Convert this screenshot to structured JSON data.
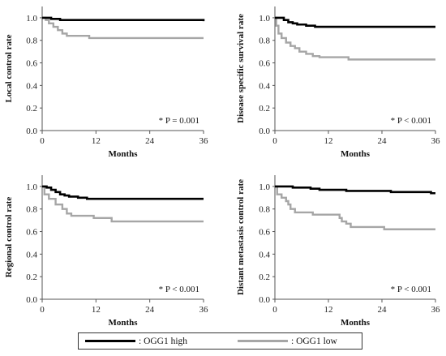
{
  "chart_data": [
    {
      "type": "line",
      "xlabel": "Months",
      "ylabel": "Local control rate",
      "xticks": [
        0,
        12,
        24,
        36
      ],
      "yticks": [
        0.0,
        0.2,
        0.4,
        0.6,
        0.8,
        1.0
      ],
      "xlim": [
        0,
        36
      ],
      "ylim": [
        0,
        1.1
      ],
      "annotation": "* P = 0.001",
      "series": [
        {
          "name": ": OGG1 high",
          "color": "#000000",
          "points": [
            [
              0,
              1.0
            ],
            [
              1.5,
              1.0
            ],
            [
              2,
              0.99
            ],
            [
              3,
              0.99
            ],
            [
              4,
              0.98
            ],
            [
              36,
              0.97
            ]
          ]
        },
        {
          "name": ": OGG1 low",
          "color": "#a6a6a6",
          "points": [
            [
              0,
              1.0
            ],
            [
              0.8,
              0.98
            ],
            [
              1.5,
              0.95
            ],
            [
              2.5,
              0.92
            ],
            [
              3.5,
              0.89
            ],
            [
              4.5,
              0.86
            ],
            [
              5.5,
              0.84
            ],
            [
              10,
              0.84
            ],
            [
              10.5,
              0.82
            ],
            [
              36,
              0.82
            ]
          ]
        }
      ]
    },
    {
      "type": "line",
      "xlabel": "Months",
      "ylabel": "Disease specific survival rate",
      "xticks": [
        0,
        12,
        24,
        36
      ],
      "yticks": [
        0.0,
        0.2,
        0.4,
        0.6,
        0.8,
        1.0
      ],
      "xlim": [
        0,
        36
      ],
      "ylim": [
        0,
        1.1
      ],
      "annotation": "* P < 0.001",
      "series": [
        {
          "name": ": OGG1 high",
          "color": "#000000",
          "points": [
            [
              0,
              1.0
            ],
            [
              1.5,
              1.0
            ],
            [
              2,
              0.98
            ],
            [
              3,
              0.96
            ],
            [
              4,
              0.95
            ],
            [
              5,
              0.94
            ],
            [
              7,
              0.93
            ],
            [
              9,
              0.92
            ],
            [
              36,
              0.92
            ]
          ]
        },
        {
          "name": ": OGG1 low",
          "color": "#a6a6a6",
          "points": [
            [
              0,
              1.0
            ],
            [
              0.3,
              0.93
            ],
            [
              0.8,
              0.86
            ],
            [
              1.5,
              0.82
            ],
            [
              2.5,
              0.78
            ],
            [
              3.5,
              0.75
            ],
            [
              4.5,
              0.73
            ],
            [
              5.5,
              0.7
            ],
            [
              7,
              0.68
            ],
            [
              8.5,
              0.66
            ],
            [
              10,
              0.65
            ],
            [
              16,
              0.65
            ],
            [
              16.5,
              0.63
            ],
            [
              36,
              0.63
            ]
          ]
        }
      ]
    },
    {
      "type": "line",
      "xlabel": "Months",
      "ylabel": "Regional control rate",
      "xticks": [
        0,
        12,
        24,
        36
      ],
      "yticks": [
        0.0,
        0.2,
        0.4,
        0.6,
        0.8,
        1.0
      ],
      "xlim": [
        0,
        36
      ],
      "ylim": [
        0,
        1.1
      ],
      "annotation": "* P < 0.001",
      "series": [
        {
          "name": ": OGG1 high",
          "color": "#000000",
          "points": [
            [
              0,
              1.0
            ],
            [
              1,
              0.99
            ],
            [
              2,
              0.97
            ],
            [
              3,
              0.95
            ],
            [
              4,
              0.93
            ],
            [
              5,
              0.92
            ],
            [
              6,
              0.91
            ],
            [
              8,
              0.9
            ],
            [
              10,
              0.89
            ],
            [
              36,
              0.89
            ]
          ]
        },
        {
          "name": ": OGG1 low",
          "color": "#a6a6a6",
          "points": [
            [
              0,
              1.0
            ],
            [
              0.5,
              0.93
            ],
            [
              1.5,
              0.89
            ],
            [
              3,
              0.84
            ],
            [
              4.5,
              0.8
            ],
            [
              5.5,
              0.76
            ],
            [
              6.5,
              0.74
            ],
            [
              11,
              0.74
            ],
            [
              11.5,
              0.72
            ],
            [
              15,
              0.72
            ],
            [
              15.5,
              0.69
            ],
            [
              36,
              0.69
            ]
          ]
        }
      ]
    },
    {
      "type": "line",
      "xlabel": "Months",
      "ylabel": "Distant metastasis control rate",
      "xticks": [
        0,
        12,
        24,
        36
      ],
      "yticks": [
        0.0,
        0.2,
        0.4,
        0.6,
        0.8,
        1.0
      ],
      "xlim": [
        0,
        36
      ],
      "ylim": [
        0,
        1.1
      ],
      "annotation": "* P < 0.001",
      "series": [
        {
          "name": ": OGG1 high",
          "color": "#000000",
          "points": [
            [
              0,
              1.0
            ],
            [
              2,
              1.0
            ],
            [
              4,
              0.99
            ],
            [
              6,
              0.99
            ],
            [
              8,
              0.98
            ],
            [
              10,
              0.97
            ],
            [
              13,
              0.97
            ],
            [
              16,
              0.96
            ],
            [
              20,
              0.96
            ],
            [
              26,
              0.95
            ],
            [
              34,
              0.95
            ],
            [
              35,
              0.94
            ],
            [
              36,
              0.94
            ]
          ]
        },
        {
          "name": ": OGG1 low",
          "color": "#a6a6a6",
          "points": [
            [
              0,
              1.0
            ],
            [
              0.5,
              0.93
            ],
            [
              1.5,
              0.9
            ],
            [
              2.5,
              0.87
            ],
            [
              3,
              0.84
            ],
            [
              3.5,
              0.8
            ],
            [
              4.5,
              0.77
            ],
            [
              8,
              0.77
            ],
            [
              8.5,
              0.75
            ],
            [
              14,
              0.75
            ],
            [
              14.5,
              0.72
            ],
            [
              15,
              0.69
            ],
            [
              16,
              0.67
            ],
            [
              17,
              0.64
            ],
            [
              24,
              0.64
            ],
            [
              24.5,
              0.62
            ],
            [
              36,
              0.62
            ]
          ]
        }
      ]
    }
  ],
  "legend": {
    "items": [
      {
        "label": ": OGG1 high",
        "color": "#000000"
      },
      {
        "label": ": OGG1 low",
        "color": "#a6a6a6"
      }
    ]
  }
}
